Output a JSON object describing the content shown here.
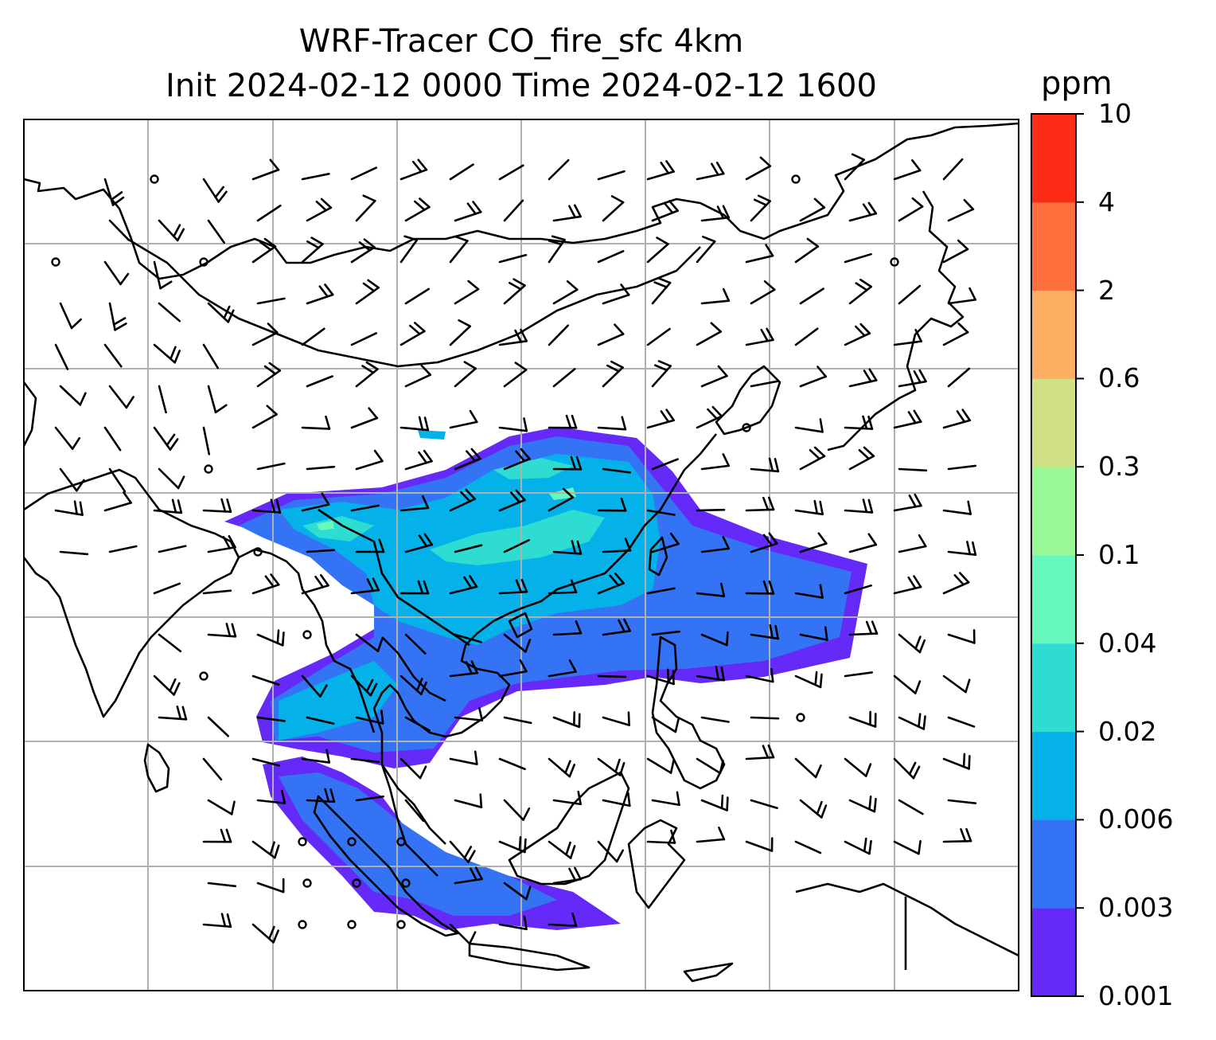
{
  "title": {
    "line1": "WRF-Tracer CO_fire_sfc 4km",
    "line2": "Init 2024-02-12 0000 Time 2024-02-12 1600"
  },
  "colorbar": {
    "unit": "ppm",
    "levels": [
      "0.001",
      "0.003",
      "0.006",
      "0.02",
      "0.04",
      "0.1",
      "0.3",
      "0.6",
      "2",
      "4",
      "10"
    ],
    "colors": [
      "#6529F8",
      "#3474F4",
      "#04B1E9",
      "#2EDCD2",
      "#66F8BD",
      "#99F996",
      "#CFE184",
      "#FDAE63",
      "#FD6F3C",
      "#FC2C16"
    ]
  },
  "map": {
    "field": "CO_fire_sfc",
    "overlays": [
      "coastlines",
      "gridlines",
      "wind-barbs"
    ],
    "plume_colors": [
      "#6529F8",
      "#3474F4",
      "#04B1E9",
      "#2EDCD2",
      "#66F8BD"
    ]
  }
}
